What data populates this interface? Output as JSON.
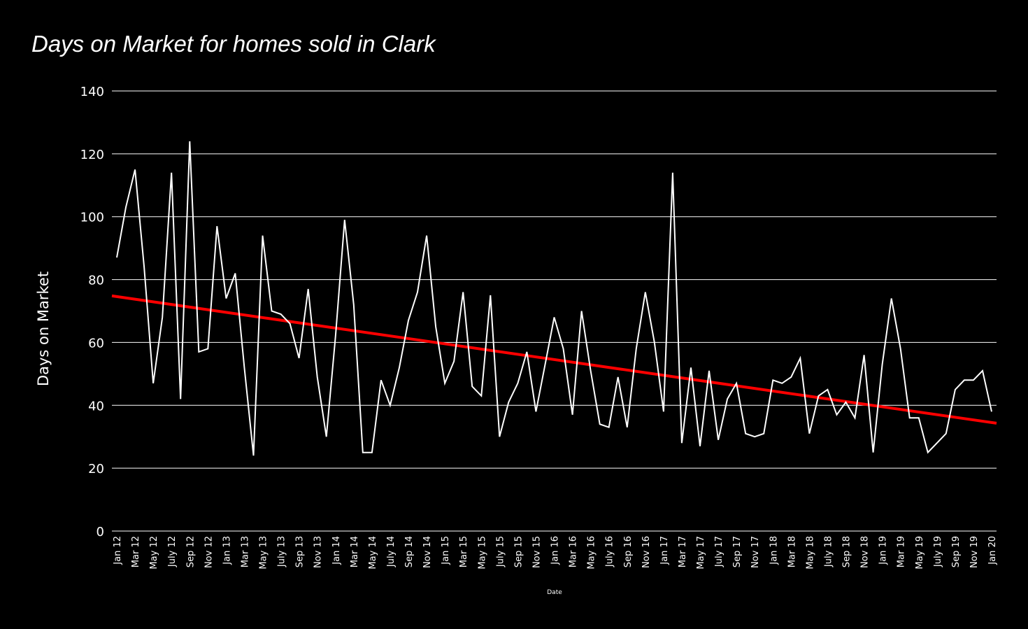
{
  "chart_data": {
    "type": "line",
    "title": "Days on Market for homes sold in Clark",
    "xlabel": "Date",
    "ylabel": "Days on Market",
    "ylim": [
      0,
      140
    ],
    "yticks": [
      0,
      20,
      40,
      60,
      80,
      100,
      120,
      140
    ],
    "grid": true,
    "background": "#000000",
    "x_tick_labels": [
      "Jan 12",
      "Mar 12",
      "May 12",
      "July 12",
      "Sep 12",
      "Nov 12",
      "Jan 13",
      "Mar 13",
      "May 13",
      "July 13",
      "Sep 13",
      "Nov 13",
      "Jan 14",
      "Mar 14",
      "May 14",
      "July 14",
      "Sep 14",
      "Nov 14",
      "Jan 15",
      "Mar 15",
      "May 15",
      "July 15",
      "Sep 15",
      "Nov 15",
      "Jan 16",
      "Mar 16",
      "May 16",
      "July 16",
      "Sep 16",
      "Nov 16",
      "Jan 17",
      "Mar 17",
      "May 17",
      "July 17",
      "Sep 17",
      "Nov 17",
      "Jan 18",
      "Mar 18",
      "May 18",
      "July 18",
      "Sep 18",
      "Nov 18",
      "Jan 19",
      "Mar 19",
      "May 19",
      "July 19",
      "Sep 19",
      "Nov 19",
      "Jan 20"
    ],
    "x": [
      "2012-01",
      "2012-02",
      "2012-03",
      "2012-04",
      "2012-05",
      "2012-06",
      "2012-07",
      "2012-08",
      "2012-09",
      "2012-10",
      "2012-11",
      "2012-12",
      "2013-01",
      "2013-02",
      "2013-03",
      "2013-04",
      "2013-05",
      "2013-06",
      "2013-07",
      "2013-08",
      "2013-09",
      "2013-10",
      "2013-11",
      "2013-12",
      "2014-01",
      "2014-02",
      "2014-03",
      "2014-04",
      "2014-05",
      "2014-06",
      "2014-07",
      "2014-08",
      "2014-09",
      "2014-10",
      "2014-11",
      "2014-12",
      "2015-01",
      "2015-02",
      "2015-03",
      "2015-04",
      "2015-05",
      "2015-06",
      "2015-07",
      "2015-08",
      "2015-09",
      "2015-10",
      "2015-11",
      "2015-12",
      "2016-01",
      "2016-02",
      "2016-03",
      "2016-04",
      "2016-05",
      "2016-06",
      "2016-07",
      "2016-08",
      "2016-09",
      "2016-10",
      "2016-11",
      "2016-12",
      "2017-01",
      "2017-02",
      "2017-03",
      "2017-04",
      "2017-05",
      "2017-06",
      "2017-07",
      "2017-08",
      "2017-09",
      "2017-10",
      "2017-11",
      "2017-12",
      "2018-01",
      "2018-02",
      "2018-03",
      "2018-04",
      "2018-05",
      "2018-06",
      "2018-07",
      "2018-08",
      "2018-09",
      "2018-10",
      "2018-11",
      "2018-12",
      "2019-01",
      "2019-02",
      "2019-03",
      "2019-04",
      "2019-05",
      "2019-06",
      "2019-07",
      "2019-08",
      "2019-09",
      "2019-10",
      "2019-11",
      "2019-12",
      "2020-01"
    ],
    "series": [
      {
        "name": "Days on Market",
        "color": "#ffffff",
        "values": [
          87,
          103,
          115,
          84,
          47,
          68,
          114,
          42,
          124,
          57,
          58,
          97,
          74,
          82,
          52,
          24,
          94,
          70,
          69,
          66,
          55,
          77,
          49,
          30,
          62,
          99,
          72,
          25,
          25,
          48,
          40,
          52,
          67,
          76,
          94,
          65,
          47,
          54,
          76,
          46,
          43,
          75,
          30,
          41,
          47,
          57,
          38,
          53,
          68,
          58,
          37,
          70,
          51,
          34,
          33,
          49,
          33,
          58,
          76,
          60,
          38,
          114,
          28,
          52,
          27,
          51,
          29,
          42,
          47,
          31,
          30,
          31,
          48,
          47,
          49,
          55,
          31,
          43,
          45,
          37,
          41,
          36,
          56,
          25,
          53,
          74,
          58,
          36,
          36,
          25,
          28,
          31,
          45,
          48,
          48,
          51,
          38
        ]
      },
      {
        "name": "Trend",
        "color": "#ff0000",
        "type": "linear-trend",
        "start": 74.8,
        "end": 34.3
      }
    ]
  }
}
